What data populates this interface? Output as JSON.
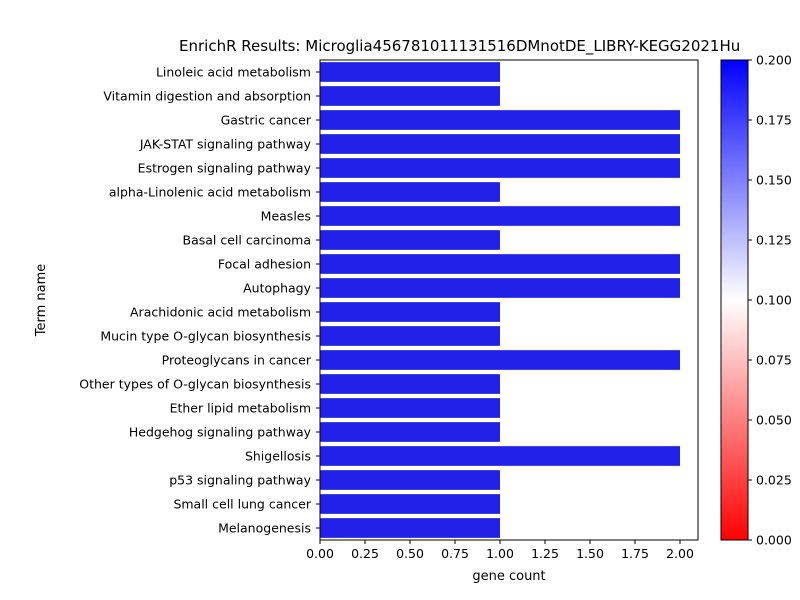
{
  "chart_data": {
    "type": "bar",
    "orientation": "horizontal",
    "title": "EnrichR Results: Microglia456781011131516DMnotDE_LIBRY-KEGG2021Hu",
    "xlabel": "gene count",
    "ylabel": "Term name",
    "xlim": [
      0,
      2.1
    ],
    "x_ticks": [
      "0.00",
      "0.25",
      "0.50",
      "0.75",
      "1.00",
      "1.25",
      "1.50",
      "1.75",
      "2.00"
    ],
    "grid": false,
    "legend": "none",
    "categories": [
      "Linoleic acid metabolism",
      "Vitamin digestion and absorption",
      "Gastric cancer",
      "JAK-STAT signaling pathway",
      "Estrogen signaling pathway",
      "alpha-Linolenic acid metabolism",
      "Measles",
      "Basal cell carcinoma",
      "Focal adhesion",
      "Autophagy",
      "Arachidonic acid metabolism",
      "Mucin type O-glycan biosynthesis",
      "Proteoglycans in cancer",
      "Other types of O-glycan biosynthesis",
      "Ether lipid metabolism",
      "Hedgehog signaling pathway",
      "Shigellosis",
      "p53 signaling pathway",
      "Small cell lung cancer",
      "Melanogenesis"
    ],
    "values": [
      1,
      1,
      2,
      2,
      2,
      1,
      2,
      1,
      2,
      2,
      1,
      1,
      2,
      1,
      1,
      1,
      2,
      1,
      1,
      1
    ],
    "bar_color": "#2020e8",
    "colorbar": {
      "range": [
        0.0,
        0.2
      ],
      "ticks": [
        "0.000",
        "0.025",
        "0.050",
        "0.075",
        "0.100",
        "0.125",
        "0.150",
        "0.175",
        "0.200"
      ],
      "colors": [
        "#ff0000",
        "#ffffff",
        "#0000ff"
      ]
    }
  }
}
